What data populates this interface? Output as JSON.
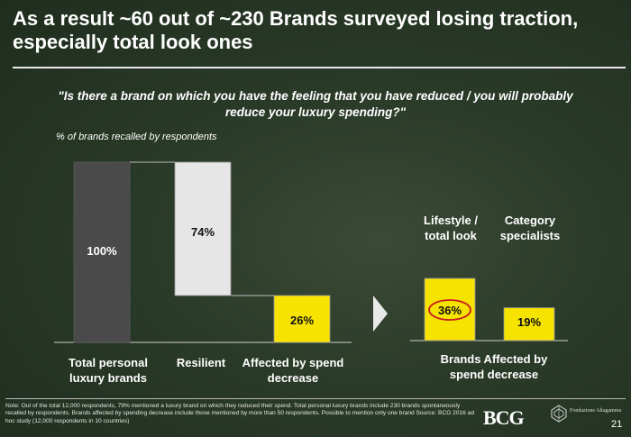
{
  "title": "As a result ~60 out of ~230 Brands surveyed losing traction, especially total look ones",
  "question": "\"Is there a brand on which you have the feeling that you have reduced / you will probably reduce your luxury spending?\"",
  "subtitle": "% of brands recalled by respondents",
  "chart_data": [
    {
      "type": "waterfall",
      "categories": [
        "Total personal luxury brands",
        "Resilient",
        "Affected by spend decrease"
      ],
      "values": [
        100,
        74,
        26
      ],
      "labels": [
        "100%",
        "74%",
        "26%"
      ],
      "colors": [
        "#4a4a4a",
        "#e6e6e6",
        "#f7e300"
      ],
      "ylim": [
        0,
        100
      ]
    },
    {
      "type": "bar",
      "title": "Brands Affected by spend decrease",
      "categories": [
        "Lifestyle / total look",
        "Category specialists"
      ],
      "values": [
        36,
        19
      ],
      "labels": [
        "36%",
        "19%"
      ],
      "color": "#f7e300",
      "highlight": "36%"
    }
  ],
  "note": "Note: Out of the total 12,000 respondents, 79% mentioned a luxury brand on which they reduced their spend. Total personal luxury brands include 230 brands spontaneously recalled by respondents. Brands affected by spending decrease include those mentioned by more than 50 respondents. Possible to mention only one brand     Source: BCG 2016 ad hoc study (12,000 respondents in 10 countries)",
  "logo_bcg": "BCG",
  "logo_brand_text": "Fondazione Altagamma",
  "page_number": "21",
  "colors": {
    "dark_bar": "#4a4a4a",
    "light_bar": "#e6e6e6",
    "yellow": "#f7e300",
    "highlight_ring": "#c81e1e"
  }
}
